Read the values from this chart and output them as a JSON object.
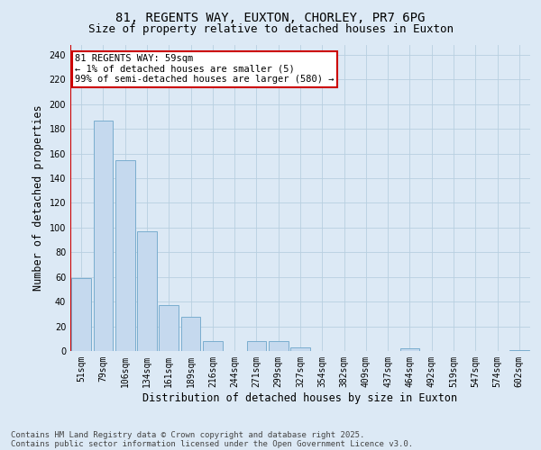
{
  "title_line1": "81, REGENTS WAY, EUXTON, CHORLEY, PR7 6PG",
  "title_line2": "Size of property relative to detached houses in Euxton",
  "xlabel": "Distribution of detached houses by size in Euxton",
  "ylabel": "Number of detached properties",
  "categories": [
    "51sqm",
    "79sqm",
    "106sqm",
    "134sqm",
    "161sqm",
    "189sqm",
    "216sqm",
    "244sqm",
    "271sqm",
    "299sqm",
    "327sqm",
    "354sqm",
    "382sqm",
    "409sqm",
    "437sqm",
    "464sqm",
    "492sqm",
    "519sqm",
    "547sqm",
    "574sqm",
    "602sqm"
  ],
  "values": [
    59,
    187,
    155,
    97,
    37,
    28,
    8,
    0,
    8,
    8,
    3,
    0,
    0,
    0,
    0,
    2,
    0,
    0,
    0,
    0,
    1
  ],
  "bar_color": "#c5d9ee",
  "bar_edge_color": "#7aadce",
  "annotation_text": "81 REGENTS WAY: 59sqm\n← 1% of detached houses are smaller (5)\n99% of semi-detached houses are larger (580) →",
  "annotation_box_color": "white",
  "annotation_box_edge_color": "#cc0000",
  "marker_line_color": "#cc0000",
  "ylim": [
    0,
    248
  ],
  "yticks": [
    0,
    20,
    40,
    60,
    80,
    100,
    120,
    140,
    160,
    180,
    200,
    220,
    240
  ],
  "footer_line1": "Contains HM Land Registry data © Crown copyright and database right 2025.",
  "footer_line2": "Contains public sector information licensed under the Open Government Licence v3.0.",
  "bg_color": "#dce9f5",
  "plot_bg_color": "#dce9f5",
  "grid_color": "#b8cfe0",
  "title_fontsize": 10,
  "subtitle_fontsize": 9,
  "axis_label_fontsize": 8.5,
  "tick_fontsize": 7,
  "annotation_fontsize": 7.5,
  "footer_fontsize": 6.5
}
